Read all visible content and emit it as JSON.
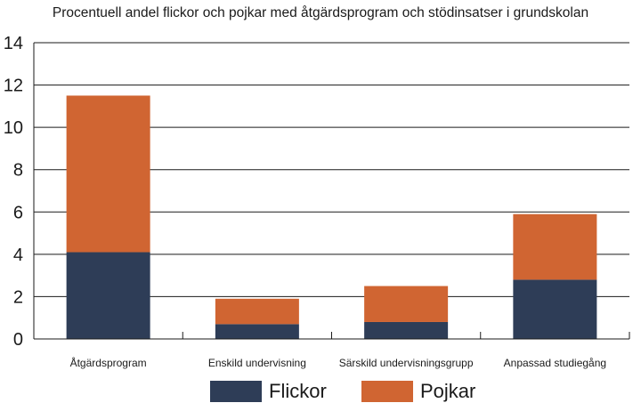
{
  "chart_data": {
    "type": "bar",
    "stacked": true,
    "title": "Procentuell andel flickor och pojkar med åtgärdsprogram och stödinsatser i grundskolan",
    "xlabel": "",
    "ylabel": "",
    "ylim": [
      0,
      14
    ],
    "yticks": [
      0,
      2,
      4,
      6,
      8,
      10,
      12,
      14
    ],
    "grid": true,
    "legend_position": "bottom",
    "categories": [
      "Åtgärdsprogram",
      "Enskild undervisning",
      "Särskild undervisningsgrupp",
      "Anpassad studiegång"
    ],
    "series": [
      {
        "name": "Flickor",
        "color": "#2e3d57",
        "values": [
          4.1,
          0.7,
          0.8,
          2.8
        ]
      },
      {
        "name": "Pojkar",
        "color": "#d06532",
        "values": [
          7.4,
          1.2,
          1.7,
          3.1
        ]
      }
    ]
  }
}
